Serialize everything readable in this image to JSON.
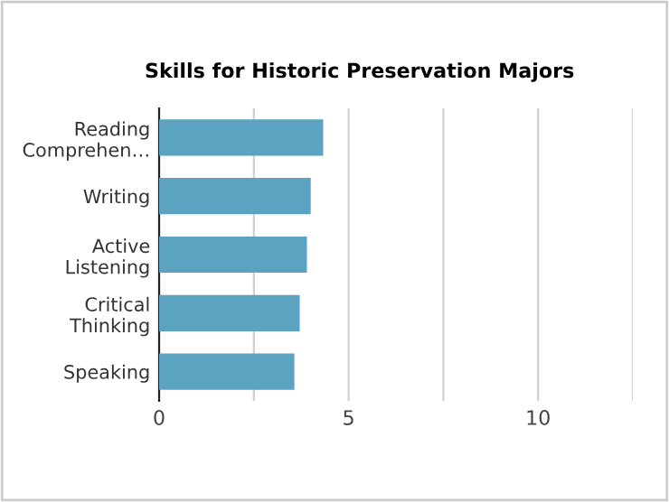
{
  "chart_data": {
    "type": "bar",
    "orientation": "horizontal",
    "title": "Skills for Historic Preservation Majors",
    "categories": [
      "Reading\nComprehen…",
      "Writing",
      "Active\nListening",
      "Critical\nThinking",
      "Speaking"
    ],
    "values": [
      4.33,
      4.0,
      3.9,
      3.71,
      3.57
    ],
    "color": "#5ba3c0",
    "xlim": [
      0,
      12.5
    ],
    "xticks": [
      0,
      {
        "value": 2.5,
        "label": null
      },
      5,
      {
        "value": 7.5,
        "label": null
      },
      10,
      {
        "value": 12.5,
        "label": null
      }
    ],
    "grid": "x",
    "legend": false
  }
}
